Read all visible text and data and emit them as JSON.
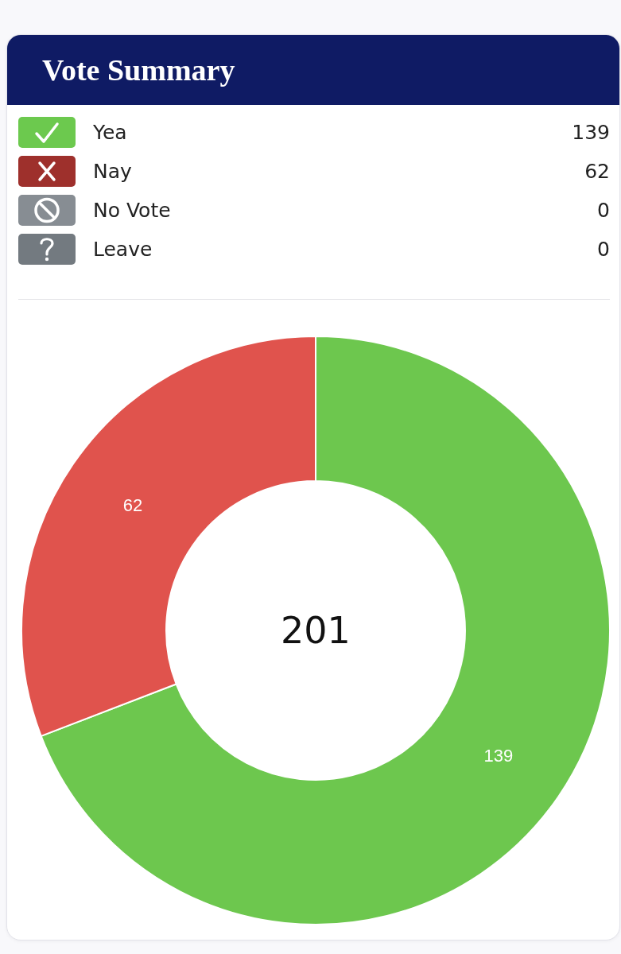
{
  "chart_data": [
    {
      "type": "other",
      "title": "Vote Summary",
      "categories": [
        "Yea",
        "Nay",
        "No Vote",
        "Leave"
      ],
      "values": [
        139,
        62,
        0,
        0
      ],
      "colors": [
        "#6cc94e",
        "#9e302c",
        "#878d93",
        "#737a80"
      ],
      "data_labels": true
    },
    {
      "type": "donut",
      "categories": [
        null,
        null
      ],
      "values": [
        139,
        62
      ],
      "colors": [
        "#6dc74e",
        "#e0534d"
      ],
      "value_labels": [
        "139",
        "62"
      ],
      "annotations": [
        "201"
      ]
    }
  ]
}
